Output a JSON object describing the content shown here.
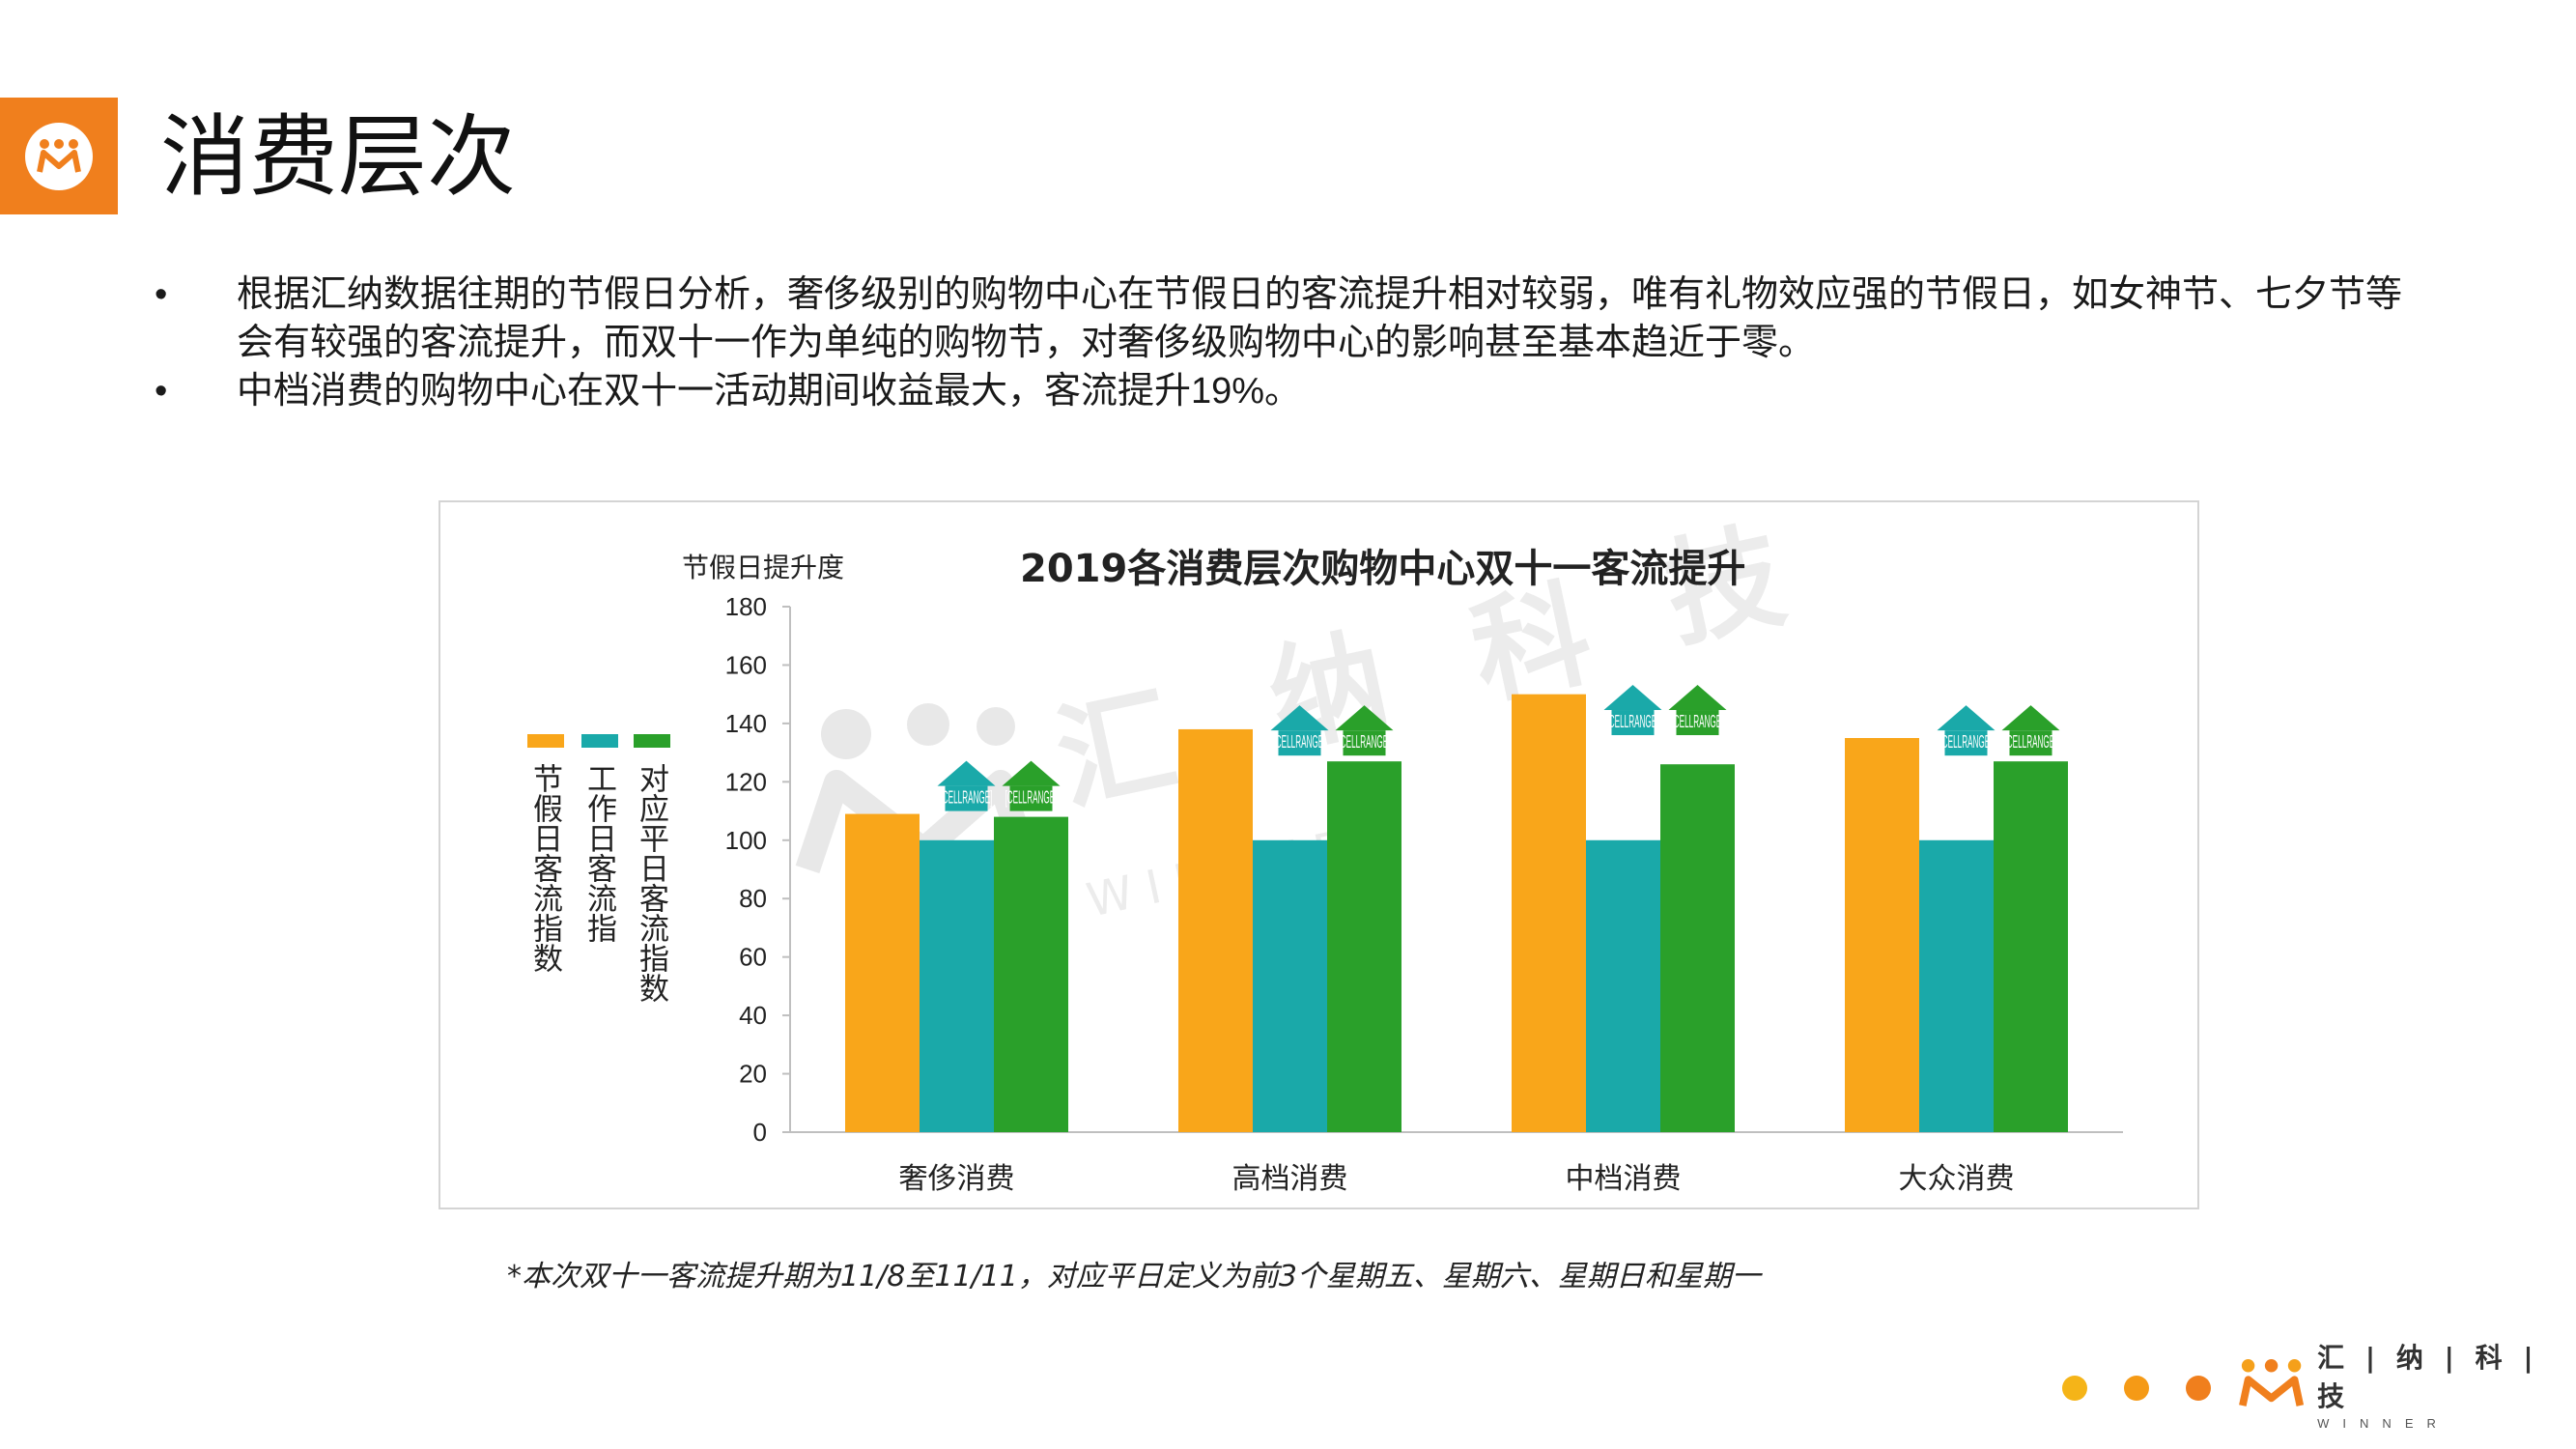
{
  "slide": {
    "title": "消费层次",
    "bullets": [
      "根据汇纳数据往期的节假日分析，奢侈级别的购物中心在节假日的客流提升相对较弱，唯有礼物效应强的节假日，如女神节、七夕节等会有较强的客流提升，而双十一作为单纯的购物节，对奢侈级购物中心的影响甚至基本趋近于零。",
      "中档消费的购物中心在双十一活动期间收益最大，客流提升19%。"
    ],
    "bullet_symbol": "•",
    "footnote": "*本次双十一客流提升期为11/8至11/11，对应平日定义为前3个星期五、星期六、星期日和星期一",
    "brand_cn": "汇 | 纳 | 科 | 技",
    "brand_en": "WINNER",
    "watermark_cn": [
      "汇",
      "纳",
      "科",
      "技"
    ],
    "watermark_en": "W I N N E R",
    "colors": {
      "accent": "#f07f1d",
      "dot1": "#f5b418",
      "dot2": "#f59a16",
      "dot3": "#f07f1d"
    }
  },
  "chart_data": {
    "type": "bar",
    "title": "2019各消费层次购物中心双十一客流提升",
    "ylabel": "节假日提升度",
    "xlabel": "",
    "ylim": [
      0,
      180
    ],
    "yticks": [
      0,
      20,
      40,
      60,
      80,
      100,
      120,
      140,
      160,
      180
    ],
    "categories": [
      "奢侈消费",
      "高档消费",
      "中档消费",
      "大众消费"
    ],
    "series": [
      {
        "name": "节假日客流指数",
        "color": "#f9a61a",
        "values": [
          109,
          138,
          150,
          135
        ]
      },
      {
        "name": "工作日客流指",
        "color": "#1aa9a9",
        "values": [
          100,
          100,
          100,
          100
        ]
      },
      {
        "name": "对应平日客流指数",
        "color": "#2aa02a",
        "values": [
          108,
          127,
          126,
          127
        ]
      }
    ],
    "annotations": {
      "text": "[CELLRANGE]",
      "colors": [
        "#1aa9a9",
        "#2aa02a"
      ]
    },
    "grid": false,
    "legend_position": "left"
  }
}
